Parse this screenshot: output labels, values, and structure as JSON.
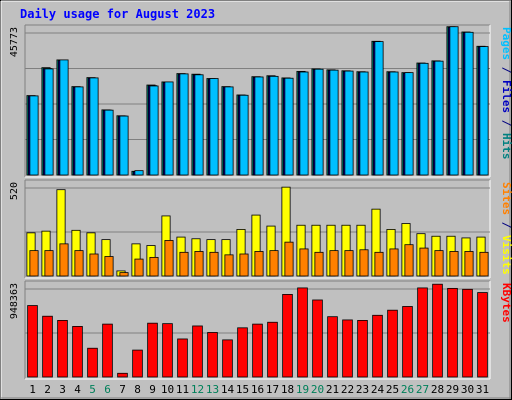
{
  "chart_data": {
    "type": "bar",
    "title": "Daily usage for August 2023",
    "categories": [
      "1",
      "2",
      "3",
      "4",
      "5",
      "6",
      "7",
      "8",
      "9",
      "10",
      "11",
      "12",
      "13",
      "14",
      "15",
      "16",
      "17",
      "18",
      "19",
      "20",
      "21",
      "22",
      "23",
      "24",
      "25",
      "26",
      "27",
      "28",
      "29",
      "30",
      "31"
    ],
    "weekend_days": [
      "5",
      "6",
      "12",
      "13",
      "19",
      "20",
      "26",
      "27"
    ],
    "panels": [
      {
        "id": "hits",
        "ylabel_parts": [
          {
            "text": "Pages",
            "color": "#00c0ff"
          },
          {
            "text": " / ",
            "color": "#000080"
          },
          {
            "text": "Files",
            "color": "#0000c0"
          },
          {
            "text": " / ",
            "color": "#000080"
          },
          {
            "text": "Hits",
            "color": "#008080"
          }
        ],
        "ymax_label": "45773",
        "ymax": 45773,
        "gridlines": [
          0.25,
          0.5,
          0.75
        ],
        "series": [
          {
            "name": "Hits",
            "color": "#00806c",
            "values": [
              25600,
              34600,
              37100,
              28500,
              31400,
              21000,
              19100,
              1200,
              29000,
              30000,
              32700,
              32500,
              31100,
              28500,
              25800,
              31700,
              32000,
              31300,
              33400,
              34200,
              33900,
              33600,
              33300,
              43100,
              33300,
              33000,
              36100,
              36800,
              47800,
              46100,
              41500
            ]
          },
          {
            "name": "Files",
            "color": "#0000c0",
            "values": [
              25500,
              34300,
              36900,
              28300,
              31200,
              20900,
              19000,
              1100,
              28800,
              29800,
              32500,
              32300,
              30900,
              28400,
              25700,
              31500,
              31800,
              31100,
              33200,
              34000,
              33700,
              33400,
              33100,
              42900,
              33100,
              32800,
              35900,
              36600,
              47600,
              45900,
              41300
            ]
          },
          {
            "name": "Pages",
            "color": "#00c0ff",
            "values": [
              25500,
              34200,
              37100,
              28400,
              31300,
              20900,
              19000,
              1400,
              28700,
              30000,
              32600,
              32300,
              31100,
              28400,
              25700,
              31600,
              31800,
              31200,
              33200,
              34100,
              33800,
              33500,
              33200,
              43000,
              33200,
              33000,
              36000,
              36700,
              47800,
              46000,
              41400
            ]
          }
        ]
      },
      {
        "id": "visits",
        "ylabel_parts": [
          {
            "text": "Sites",
            "color": "#ff8000"
          },
          {
            "text": " / ",
            "color": "#000080"
          },
          {
            "text": "Visits",
            "color": "#ffff00"
          }
        ],
        "ymax_label": "520",
        "ymax": 520,
        "gridlines": [
          0.5
        ],
        "series": [
          {
            "name": "Visits",
            "color": "#ffff00",
            "values": [
              255,
              265,
              510,
              270,
              255,
              215,
              30,
              190,
              180,
              355,
              230,
              220,
              215,
              215,
              275,
              360,
              295,
              525,
              300,
              300,
              300,
              300,
              300,
              395,
              275,
              310,
              250,
              235,
              235,
              225,
              230
            ]
          },
          {
            "name": "Sites",
            "color": "#ff8000",
            "values": [
              150,
              150,
              190,
              150,
              130,
              115,
              20,
              100,
              110,
              210,
              140,
              145,
              140,
              125,
              130,
              145,
              150,
              200,
              160,
              140,
              150,
              150,
              155,
              140,
              160,
              185,
              165,
              150,
              145,
              145,
              140
            ]
          }
        ]
      },
      {
        "id": "kbytes",
        "ylabel_parts": [
          {
            "text": "KBytes",
            "color": "#ff0000"
          }
        ],
        "ymax_label": "948363",
        "ymax": 948363,
        "gridlines": [
          0.5
        ],
        "series": [
          {
            "name": "KBytes",
            "color": "#ff0000",
            "values": [
              770000,
              655000,
              610000,
              545000,
              310000,
              570000,
              40000,
              290000,
              580000,
              575000,
              410000,
              550000,
              480000,
              400000,
              530000,
              570000,
              590000,
              890000,
              960000,
              830000,
              650000,
              615000,
              610000,
              665000,
              720000,
              760000,
              960000,
              1000000,
              955000,
              945000,
              910000
            ]
          }
        ]
      }
    ]
  }
}
